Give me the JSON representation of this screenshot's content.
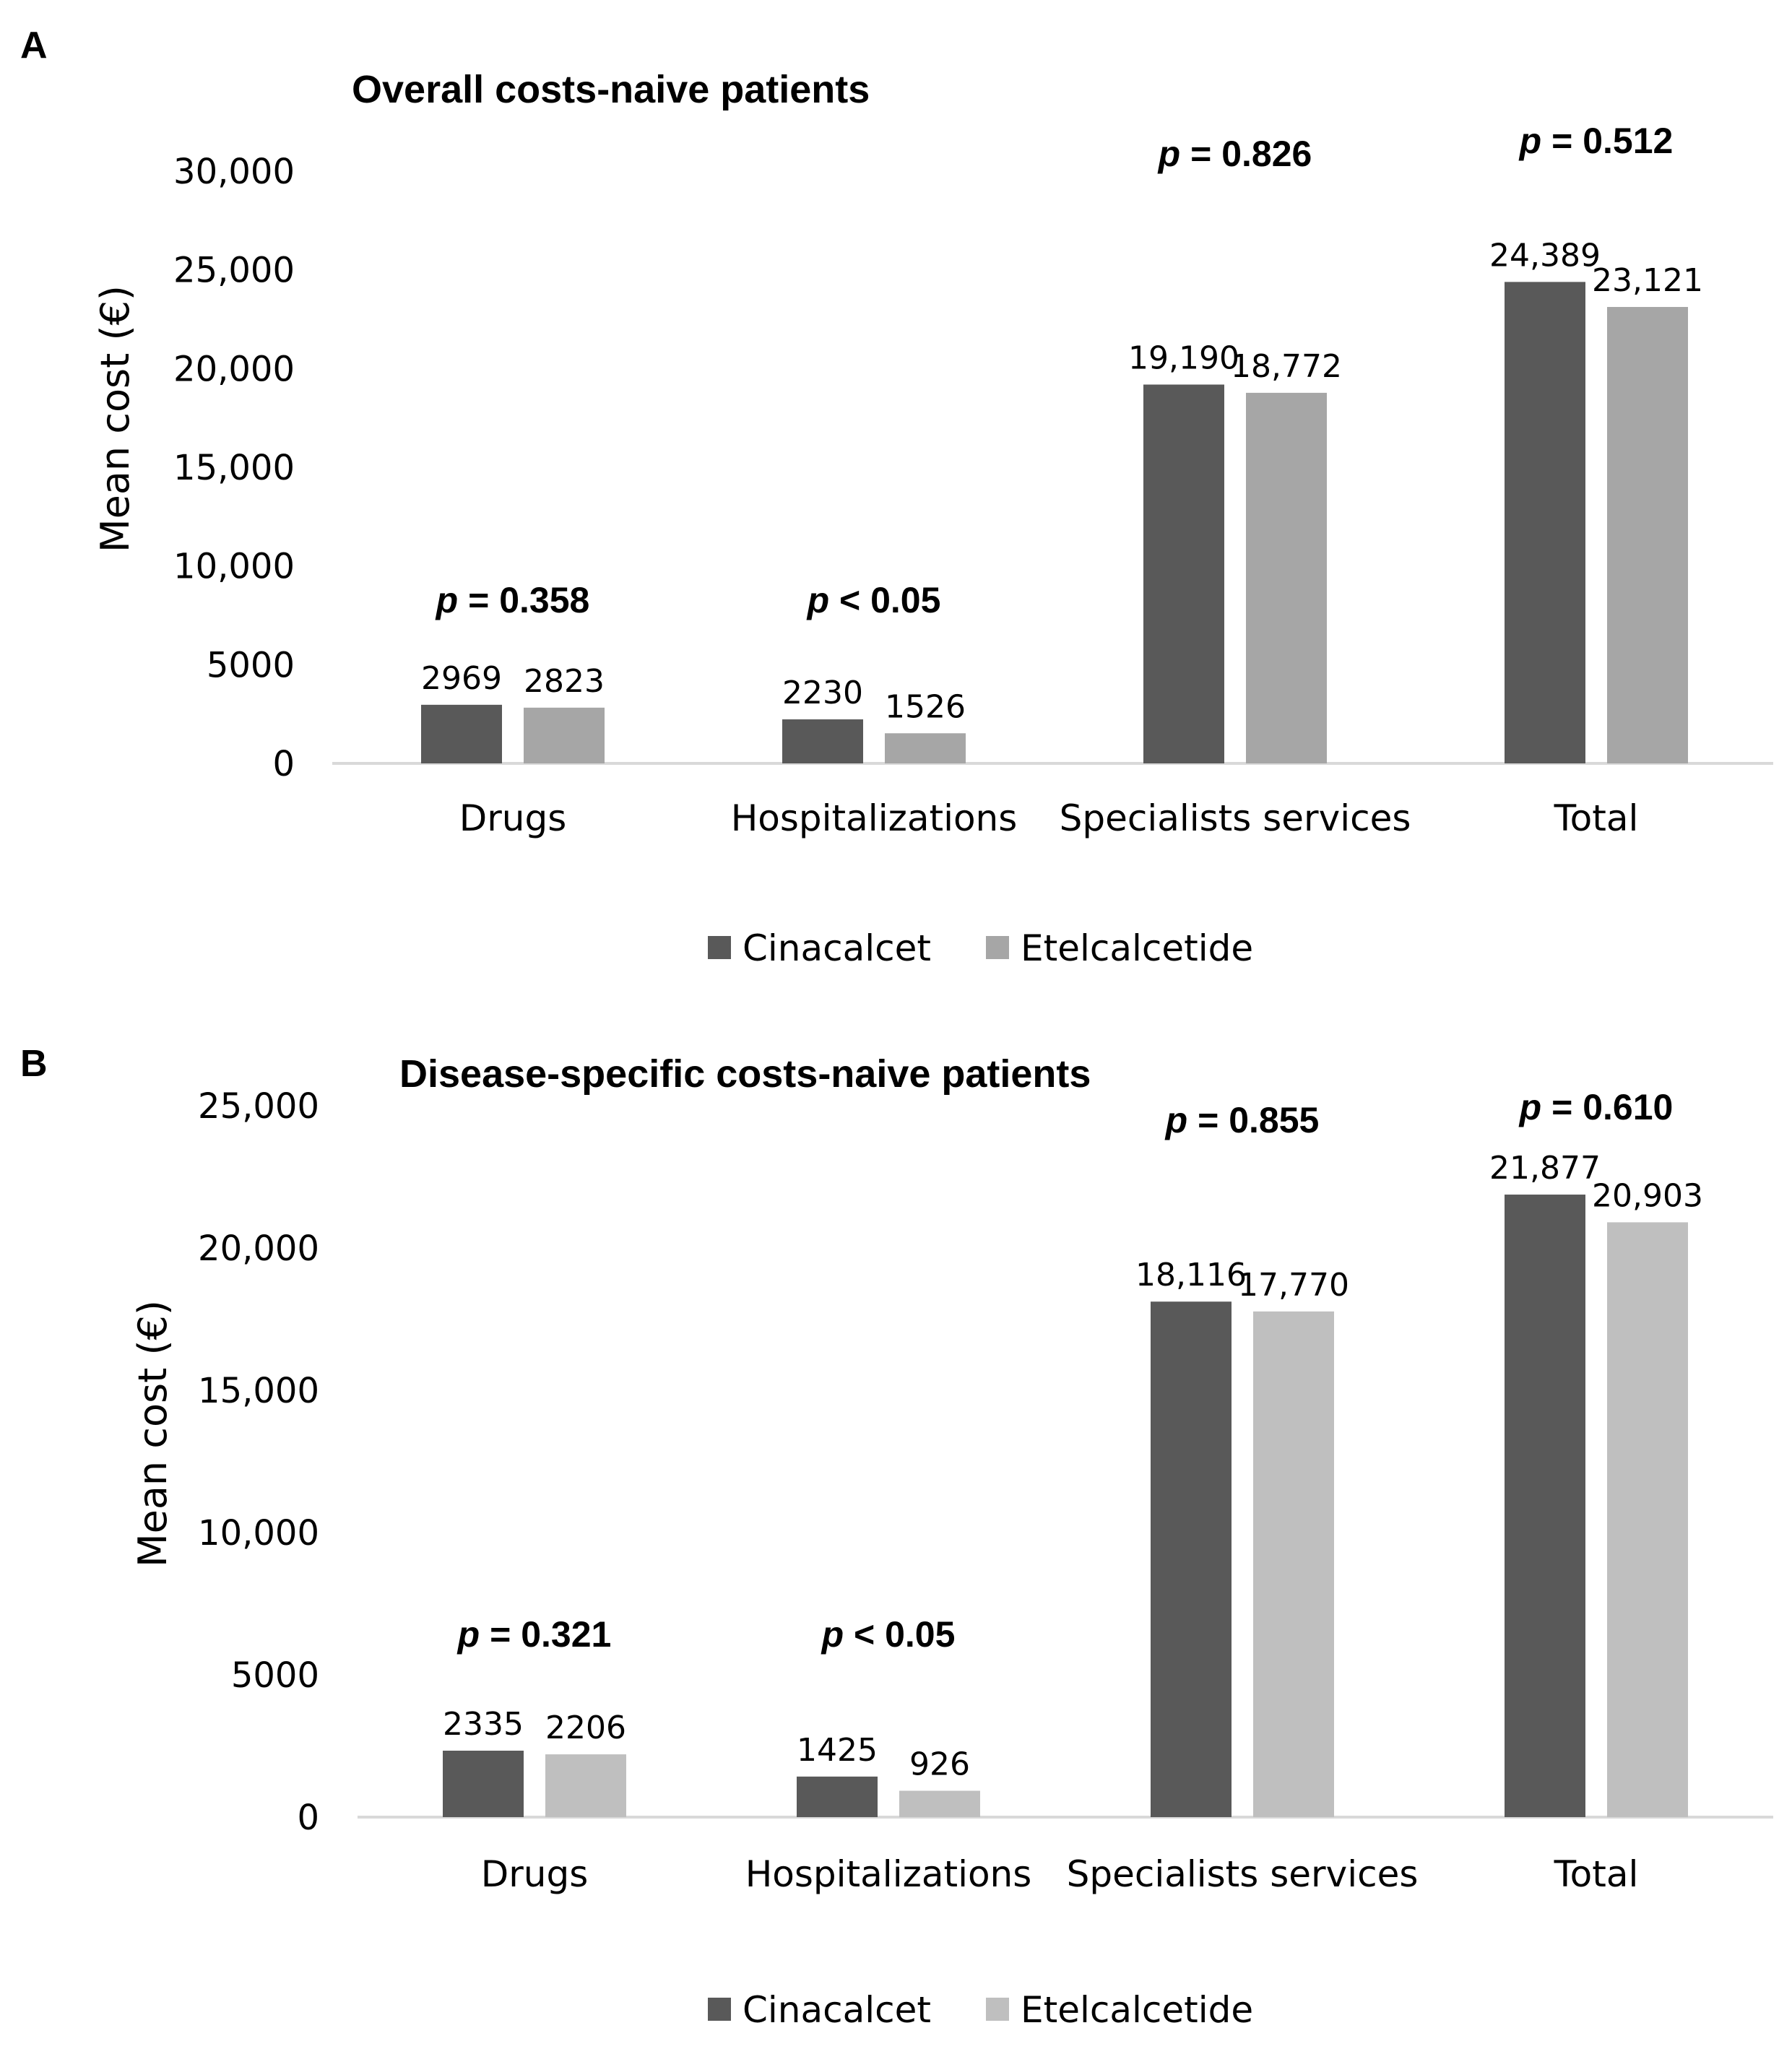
{
  "chart_data": [
    {
      "type": "bar",
      "panel": "A",
      "title": "Overall costs-naive patients",
      "ylabel": "Mean cost (€)",
      "xlabel": "",
      "ylim": [
        0,
        30000
      ],
      "yticks": [
        0,
        5000,
        10000,
        15000,
        20000,
        25000,
        30000
      ],
      "ytick_labels": [
        "0",
        "5000",
        "10,000",
        "15,000",
        "20,000",
        "25,000",
        "30,000"
      ],
      "categories": [
        "Drugs",
        "Hospitalizations",
        "Specialists services",
        "Total"
      ],
      "series": [
        {
          "name": "Cinacalcet",
          "color": "#595959",
          "values": [
            2969,
            2230,
            19190,
            24389
          ],
          "labels": [
            "2969",
            "2230",
            "19,190",
            "24,389"
          ]
        },
        {
          "name": "Etelcalcetide",
          "color": "#a6a6a6",
          "values": [
            2823,
            1526,
            18772,
            23121
          ],
          "labels": [
            "2823",
            "1526",
            "18,772",
            "23,121"
          ]
        }
      ],
      "pvalues": [
        {
          "p": "p",
          "rest": " = 0.358"
        },
        {
          "p": "p",
          "rest": " < 0.05"
        },
        {
          "p": "p",
          "rest": " = 0.826"
        },
        {
          "p": "p",
          "rest": " = 0.512"
        }
      ],
      "legend": "bottom-center"
    },
    {
      "type": "bar",
      "panel": "B",
      "title": "Disease-specific costs-naive patients",
      "ylabel": "Mean cost (€)",
      "xlabel": "",
      "ylim": [
        0,
        25000
      ],
      "yticks": [
        0,
        5000,
        10000,
        15000,
        20000,
        25000
      ],
      "ytick_labels": [
        "0",
        "5000",
        "10,000",
        "15,000",
        "20,000",
        "25,000"
      ],
      "categories": [
        "Drugs",
        "Hospitalizations",
        "Specialists services",
        "Total"
      ],
      "series": [
        {
          "name": "Cinacalcet",
          "color": "#595959",
          "values": [
            2335,
            1425,
            18116,
            21877
          ],
          "labels": [
            "2335",
            "1425",
            "18,116",
            "21,877"
          ]
        },
        {
          "name": "Etelcalcetide",
          "color": "#bfbfbf",
          "values": [
            2206,
            926,
            17770,
            20903
          ],
          "labels": [
            "2206",
            "926",
            "17,770",
            "20,903"
          ]
        }
      ],
      "pvalues": [
        {
          "p": "p",
          "rest": " = 0.321"
        },
        {
          "p": "p",
          "rest": " < 0.05"
        },
        {
          "p": "p",
          "rest": " = 0.855"
        },
        {
          "p": "p",
          "rest": " = 0.610"
        }
      ],
      "legend": "bottom-center"
    }
  ]
}
